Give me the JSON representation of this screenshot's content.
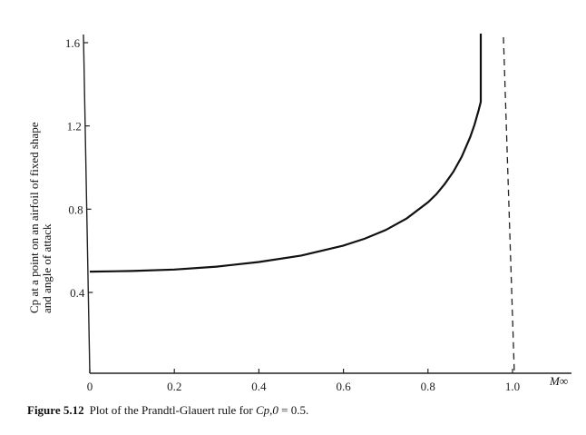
{
  "chart_data": {
    "type": "line",
    "title": "",
    "xlabel": "M∞",
    "ylabel_line1": "Cp at a point on an airfoil of fixed shape",
    "ylabel_line2": "and angle of attack",
    "xlim": [
      0,
      1.14
    ],
    "ylim": [
      0.2,
      1.65
    ],
    "x_ticks": [
      0,
      0.2,
      0.4,
      0.6,
      0.8,
      1.0
    ],
    "x_tick_labels": [
      "0",
      "0.2",
      "0.4",
      "0.6",
      "0.8",
      "1.0"
    ],
    "y_ticks": [
      0.4,
      0.8,
      1.2,
      1.6
    ],
    "y_tick_labels": [
      "0.4",
      "0.8",
      "1.2",
      "1.6"
    ],
    "series": [
      {
        "x": [
          0,
          0.1,
          0.2,
          0.3,
          0.4,
          0.5,
          0.6,
          0.65,
          0.7,
          0.75,
          0.8,
          0.82,
          0.84,
          0.86,
          0.88,
          0.9,
          0.91,
          0.92,
          0.925
        ],
        "values": [
          0.5,
          0.503,
          0.51,
          0.524,
          0.546,
          0.577,
          0.625,
          0.658,
          0.7,
          0.756,
          0.833,
          0.872,
          0.922,
          0.98,
          1.053,
          1.147,
          1.206,
          1.276,
          1.316
        ]
      }
    ],
    "vertical_line": {
      "x": 1.0,
      "style": "dashed"
    },
    "grid": false
  },
  "caption": {
    "figure_number": "Figure 5.12",
    "text_prefix": "Plot of the Prandtl-Glauert rule for ",
    "symbol": "Cp,0",
    "text_suffix": " = 0.5."
  }
}
